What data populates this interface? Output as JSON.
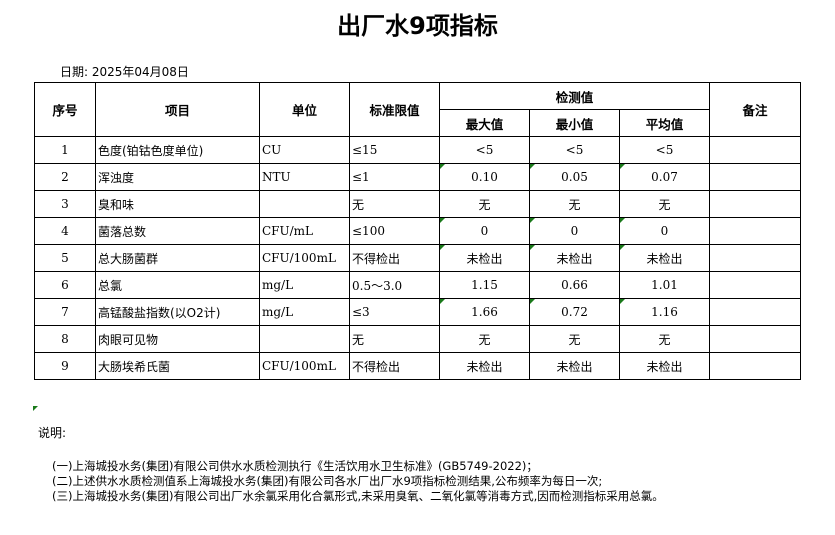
{
  "title": "出厂水9项指标",
  "date": "日期: 2025年04月08日",
  "headers": {
    "no": "序号",
    "item": "项目",
    "unit": "单位",
    "limit": "标准限值",
    "detect": "检测值",
    "max": "最大值",
    "min": "最小值",
    "avg": "平均值",
    "remark": "备注"
  },
  "rows": [
    {
      "no": "1",
      "item": "色度(铂钴色度单位)",
      "unit": "CU",
      "limit": "≤15",
      "max": "<5",
      "min": "<5",
      "avg": "<5"
    },
    {
      "no": "2",
      "item": "浑浊度",
      "unit": "NTU",
      "limit": "≤1",
      "max": "0.10",
      "min": "0.05",
      "avg": "0.07"
    },
    {
      "no": "3",
      "item": "臭和味",
      "unit": "",
      "limit": "无",
      "max": "无",
      "min": "无",
      "avg": "无"
    },
    {
      "no": "4",
      "item": "菌落总数",
      "unit": "CFU/mL",
      "limit": "≤100",
      "max": "0",
      "min": "0",
      "avg": "0"
    },
    {
      "no": "5",
      "item": "总大肠菌群",
      "unit": "CFU/100mL",
      "limit": "不得检出",
      "max": "未检出",
      "min": "未检出",
      "avg": "未检出"
    },
    {
      "no": "6",
      "item": "总氯",
      "unit": "mg/L",
      "limit": "0.5～3.0",
      "max": "1.15",
      "min": "0.66",
      "avg": "1.01"
    },
    {
      "no": "7",
      "item": "高锰酸盐指数(以O2计)",
      "unit": "mg/L",
      "limit": "≤3",
      "max": "1.66",
      "min": "0.72",
      "avg": "1.16"
    },
    {
      "no": "8",
      "item": "肉眼可见物",
      "unit": "",
      "limit": "无",
      "max": "无",
      "min": "无",
      "avg": "无"
    },
    {
      "no": "9",
      "item": "大肠埃希氏菌",
      "unit": "CFU/100mL",
      "limit": "不得检出",
      "max": "未检出",
      "min": "未检出",
      "avg": "未检出"
    }
  ],
  "notes_label": "说明:",
  "notes": [
    "(一)上海城投水务(集团)有限公司供水水质检测执行《生活饮用水卫生标准》(GB5749-2022)；",
    "(二)上述供水水质检测值系上海城投水务(集团)有限公司各水厂出厂水9项指标检测结果,公布频率为每日一次;",
    "(三)上海城投水务(集团)有限公司出厂水余氯采用化合氯形式,未采用臭氧、二氧化氯等消毒方式,因而检测指标采用总氯。"
  ]
}
